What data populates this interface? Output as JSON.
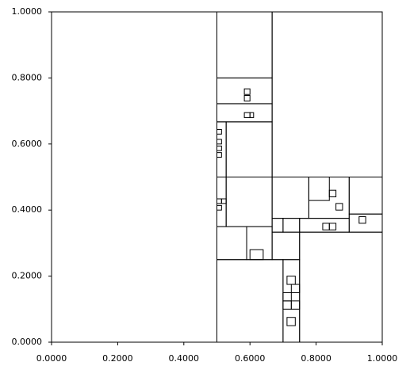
{
  "chart_data": {
    "type": "rect",
    "xlim": [
      0,
      1
    ],
    "ylim": [
      0,
      1
    ],
    "xticks": [
      {
        "value": 0,
        "label": "0.0000"
      },
      {
        "value": 0.2,
        "label": "0.2000"
      },
      {
        "value": 0.4,
        "label": "0.4000"
      },
      {
        "value": 0.6,
        "label": "0.6000"
      },
      {
        "value": 0.8,
        "label": "0.8000"
      },
      {
        "value": 1,
        "label": "1.0000"
      }
    ],
    "yticks": [
      {
        "value": 0,
        "label": "0.0000"
      },
      {
        "value": 0.2,
        "label": "0.2000"
      },
      {
        "value": 0.4,
        "label": "0.4000"
      },
      {
        "value": 0.6,
        "label": "0.6000"
      },
      {
        "value": 0.8,
        "label": "0.8000"
      },
      {
        "value": 1,
        "label": "1.0000"
      }
    ],
    "color": "#000000",
    "rects": [
      [
        0,
        0,
        0.5,
        1
      ],
      [
        0.5,
        0.8,
        0.667,
        1
      ],
      [
        0.667,
        0.5,
        1,
        1
      ],
      [
        0.5,
        0.722,
        0.667,
        0.8
      ],
      [
        0.5,
        0.667,
        0.667,
        0.722
      ],
      [
        0.5,
        0.5,
        0.528,
        0.667
      ],
      [
        0.528,
        0.5,
        0.667,
        0.667
      ],
      [
        0.5,
        0.35,
        0.528,
        0.5
      ],
      [
        0.528,
        0.35,
        0.667,
        0.5
      ],
      [
        0.5,
        0.25,
        0.59,
        0.35
      ],
      [
        0.59,
        0.25,
        0.667,
        0.35
      ],
      [
        0.667,
        0.25,
        0.75,
        0.333
      ],
      [
        0.5,
        0,
        0.7,
        0.25
      ],
      [
        0.7,
        0,
        0.75,
        0.25
      ],
      [
        0.75,
        0,
        1,
        0.333
      ],
      [
        0.667,
        0.375,
        0.778,
        0.5
      ],
      [
        0.778,
        0.375,
        0.9,
        0.5
      ],
      [
        0.9,
        0.388,
        1,
        0.5
      ],
      [
        0.667,
        0.333,
        0.7,
        0.375
      ],
      [
        0.7,
        0.333,
        0.75,
        0.375
      ],
      [
        0.75,
        0.333,
        0.9,
        0.375
      ],
      [
        0.9,
        0.333,
        1,
        0.388
      ],
      [
        0.778,
        0.429,
        0.84,
        0.5
      ],
      [
        0.5,
        0.6,
        0.514,
        0.614
      ],
      [
        0.5,
        0.58,
        0.514,
        0.594
      ],
      [
        0.5,
        0.56,
        0.514,
        0.574
      ],
      [
        0.5,
        0.63,
        0.514,
        0.644
      ],
      [
        0.583,
        0.75,
        0.6,
        0.767
      ],
      [
        0.583,
        0.73,
        0.6,
        0.747
      ],
      [
        0.583,
        0.68,
        0.6,
        0.695
      ],
      [
        0.6,
        0.68,
        0.611,
        0.695
      ],
      [
        0.7,
        0.1,
        0.725,
        0.125
      ],
      [
        0.725,
        0.1,
        0.75,
        0.125
      ],
      [
        0.7,
        0.125,
        0.725,
        0.15
      ],
      [
        0.725,
        0.15,
        0.75,
        0.175
      ],
      [
        0.712,
        0.175,
        0.737,
        0.2
      ],
      [
        0.712,
        0.05,
        0.737,
        0.075
      ],
      [
        0.5,
        0.42,
        0.514,
        0.434
      ],
      [
        0.514,
        0.42,
        0.528,
        0.434
      ],
      [
        0.5,
        0.4,
        0.514,
        0.414
      ],
      [
        0.84,
        0.44,
        0.86,
        0.46
      ],
      [
        0.86,
        0.4,
        0.88,
        0.42
      ],
      [
        0.82,
        0.34,
        0.84,
        0.36
      ],
      [
        0.84,
        0.34,
        0.86,
        0.36
      ],
      [
        0.93,
        0.36,
        0.95,
        0.38
      ],
      [
        0.6,
        0.25,
        0.64,
        0.28
      ]
    ]
  }
}
